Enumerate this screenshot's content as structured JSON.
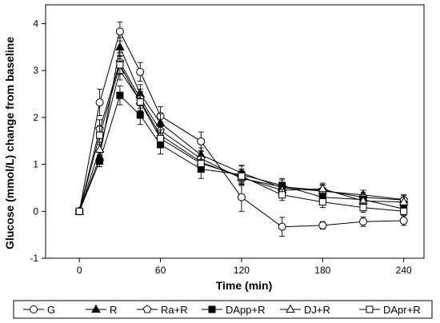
{
  "chart_data": {
    "type": "line",
    "title": "",
    "xlabel": "Time (min)",
    "ylabel": "Glucose (mmol/L) change from baseline",
    "xlim": [
      -25,
      255
    ],
    "ylim": [
      -1,
      4.4
    ],
    "xticks": [
      0,
      60,
      120,
      180,
      240
    ],
    "yticks": [
      -1,
      0,
      1,
      2,
      3,
      4
    ],
    "grid": false,
    "legend_position": "bottom",
    "series": [
      {
        "name": "G",
        "marker": "circle-open",
        "x": [
          0,
          15,
          30,
          45,
          60,
          90,
          120,
          150,
          180,
          210,
          240
        ],
        "y": [
          0,
          2.32,
          3.83,
          2.97,
          2.03,
          1.49,
          0.3,
          -0.33,
          -0.3,
          -0.22,
          -0.2
        ],
        "err": [
          0.05,
          0.28,
          0.2,
          0.2,
          0.2,
          0.2,
          0.3,
          0.2,
          0.08,
          0.1,
          0.1
        ]
      },
      {
        "name": "R",
        "marker": "triangle-filled",
        "x": [
          0,
          15,
          30,
          45,
          60,
          90,
          120,
          150,
          180,
          210,
          240
        ],
        "y": [
          0,
          1.15,
          3.5,
          2.5,
          1.88,
          1.2,
          0.82,
          0.5,
          0.43,
          0.35,
          0.25
        ],
        "err": [
          0.05,
          0.12,
          0.2,
          0.2,
          0.2,
          0.15,
          0.15,
          0.12,
          0.12,
          0.1,
          0.1
        ]
      },
      {
        "name": "Ra+R",
        "marker": "pentagon-open",
        "x": [
          0,
          15,
          30,
          45,
          60,
          90,
          120,
          150,
          180,
          210,
          240
        ],
        "y": [
          0,
          1.75,
          3.18,
          2.4,
          1.72,
          1.12,
          0.7,
          0.52,
          0.45,
          0.3,
          0.24
        ],
        "err": [
          0.05,
          0.2,
          0.2,
          0.2,
          0.18,
          0.15,
          0.15,
          0.15,
          0.12,
          0.1,
          0.1
        ]
      },
      {
        "name": "DApp+R",
        "marker": "square-filled",
        "x": [
          0,
          15,
          30,
          45,
          60,
          90,
          120,
          150,
          180,
          210,
          240
        ],
        "y": [
          0,
          1.07,
          2.47,
          2.05,
          1.42,
          0.9,
          0.78,
          0.55,
          0.3,
          0.25,
          0.05
        ],
        "err": [
          0.05,
          0.12,
          0.2,
          0.2,
          0.2,
          0.2,
          0.2,
          0.15,
          0.15,
          0.1,
          0.08
        ]
      },
      {
        "name": "DJ+R",
        "marker": "triangle-open",
        "x": [
          0,
          15,
          30,
          45,
          60,
          90,
          120,
          150,
          180,
          210,
          240
        ],
        "y": [
          0,
          1.32,
          3.0,
          2.35,
          1.62,
          1.05,
          0.72,
          0.45,
          0.48,
          0.22,
          0.2
        ],
        "err": [
          0.05,
          0.15,
          0.2,
          0.2,
          0.18,
          0.15,
          0.15,
          0.12,
          0.12,
          0.1,
          0.1
        ]
      },
      {
        "name": "DApr+R",
        "marker": "square-open",
        "x": [
          0,
          15,
          30,
          45,
          60,
          90,
          120,
          150,
          180,
          210,
          240
        ],
        "y": [
          0,
          1.62,
          3.12,
          2.33,
          1.55,
          1.02,
          0.75,
          0.35,
          0.2,
          0.08,
          0.0
        ],
        "err": [
          0.05,
          0.2,
          0.2,
          0.2,
          0.18,
          0.15,
          0.15,
          0.12,
          0.12,
          0.1,
          0.08
        ]
      }
    ]
  }
}
